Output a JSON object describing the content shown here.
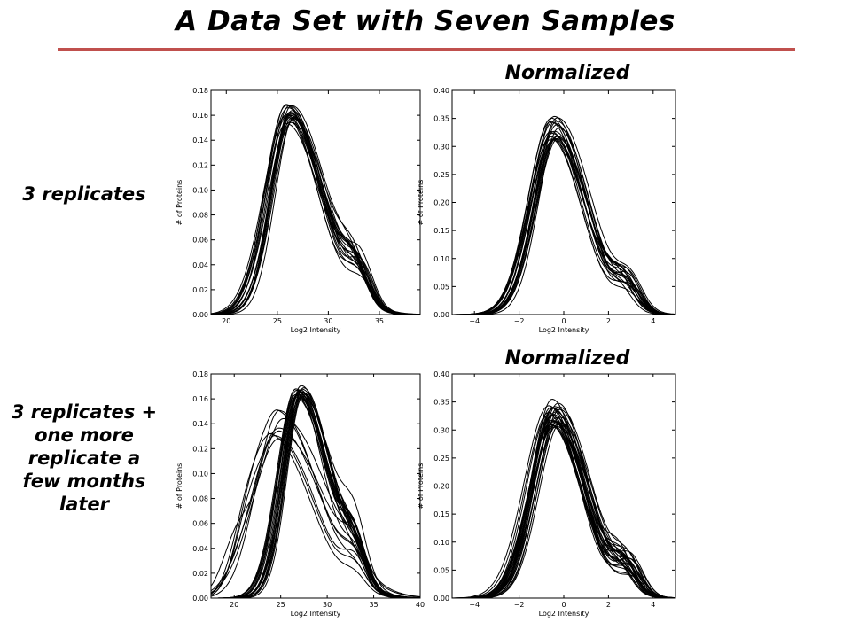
{
  "slide": {
    "title": "A Data Set with Seven Samples",
    "normalized_top": "Normalized",
    "normalized_bottom": "Normalized",
    "row1_label": "3 replicates",
    "row2_label": "3 replicates +\none more\nreplicate a\nfew months\nlater",
    "accent_color": "#c0504d"
  },
  "chart_data": [
    {
      "type": "line",
      "id": "plot-1",
      "xlabel": "Log2 Intensity",
      "ylabel": "# of Proteins",
      "xlim": [
        18.5,
        39
      ],
      "ylim": [
        0,
        0.18
      ],
      "xticks": [
        20,
        25,
        30,
        35
      ],
      "yticks": [
        0.0,
        0.02,
        0.04,
        0.06,
        0.08,
        0.1,
        0.12,
        0.14,
        0.16,
        0.18
      ],
      "ytick_labels": [
        "0.00",
        "0.02",
        "0.04",
        "0.06",
        "0.08",
        "0.10",
        "0.12",
        "0.14",
        "0.16",
        "0.18"
      ],
      "xtick_labels": [
        "20",
        "25",
        "30",
        "35"
      ],
      "grid": false,
      "series_count": 20,
      "curve_shape": {
        "peak_x": [
          25.8,
          26.7
        ],
        "peak_y": [
          0.153,
          0.17
        ],
        "shoulder_x": 32.8,
        "shoulder_y": [
          0.018,
          0.034
        ]
      }
    },
    {
      "type": "line",
      "id": "plot-2",
      "xlabel": "Log2 Intensity",
      "ylabel": "# of Proteins",
      "xlim": [
        -5,
        5
      ],
      "ylim": [
        0,
        0.4
      ],
      "xticks": [
        -4,
        -2,
        0,
        2,
        4
      ],
      "yticks": [
        0.0,
        0.05,
        0.1,
        0.15,
        0.2,
        0.25,
        0.3,
        0.35,
        0.4
      ],
      "ytick_labels": [
        "0.00",
        "0.05",
        "0.10",
        "0.15",
        "0.20",
        "0.25",
        "0.30",
        "0.35",
        "0.40"
      ],
      "xtick_labels": [
        "−4",
        "−2",
        "0",
        "2",
        "4"
      ],
      "grid": false,
      "series_count": 20,
      "curve_shape": {
        "peak_x": [
          -0.6,
          -0.2
        ],
        "peak_y": [
          0.31,
          0.355
        ],
        "shoulder_x": 2.8,
        "shoulder_y": [
          0.03,
          0.06
        ]
      }
    },
    {
      "type": "line",
      "id": "plot-3",
      "xlabel": "Log2 Intensity",
      "ylabel": "# of Proteins",
      "xlim": [
        17.5,
        40
      ],
      "ylim": [
        0,
        0.18
      ],
      "xticks": [
        20,
        25,
        30,
        35,
        40
      ],
      "yticks": [
        0.0,
        0.02,
        0.04,
        0.06,
        0.08,
        0.1,
        0.12,
        0.14,
        0.16,
        0.18
      ],
      "ytick_labels": [
        "0.00",
        "0.02",
        "0.04",
        "0.06",
        "0.08",
        "0.10",
        "0.12",
        "0.14",
        "0.16",
        "0.18"
      ],
      "xtick_labels": [
        "20",
        "25",
        "30",
        "35",
        "40"
      ],
      "grid": false,
      "series_count": 28,
      "curve_shape": {
        "group_a_peak_x": [
          26.5,
          27.5
        ],
        "group_a_peak_y": [
          0.16,
          0.171
        ],
        "group_b_peak_x": [
          24.2,
          25.5
        ],
        "group_b_peak_y": [
          0.12,
          0.152
        ]
      }
    },
    {
      "type": "line",
      "id": "plot-4",
      "xlabel": "Log2 Intensity",
      "ylabel": "# of Proteins",
      "xlim": [
        -5,
        5
      ],
      "ylim": [
        0,
        0.4
      ],
      "xticks": [
        -4,
        -2,
        0,
        2,
        4
      ],
      "yticks": [
        0.0,
        0.05,
        0.1,
        0.15,
        0.2,
        0.25,
        0.3,
        0.35,
        0.4
      ],
      "ytick_labels": [
        "0.00",
        "0.05",
        "0.10",
        "0.15",
        "0.20",
        "0.25",
        "0.30",
        "0.35",
        "0.40"
      ],
      "xtick_labels": [
        "−4",
        "−2",
        "0",
        "2",
        "4"
      ],
      "grid": false,
      "series_count": 28,
      "curve_shape": {
        "peak_x": [
          -0.7,
          -0.1
        ],
        "peak_y": [
          0.3,
          0.355
        ],
        "shoulder_x": 2.8,
        "shoulder_y": [
          0.03,
          0.06
        ]
      }
    }
  ]
}
